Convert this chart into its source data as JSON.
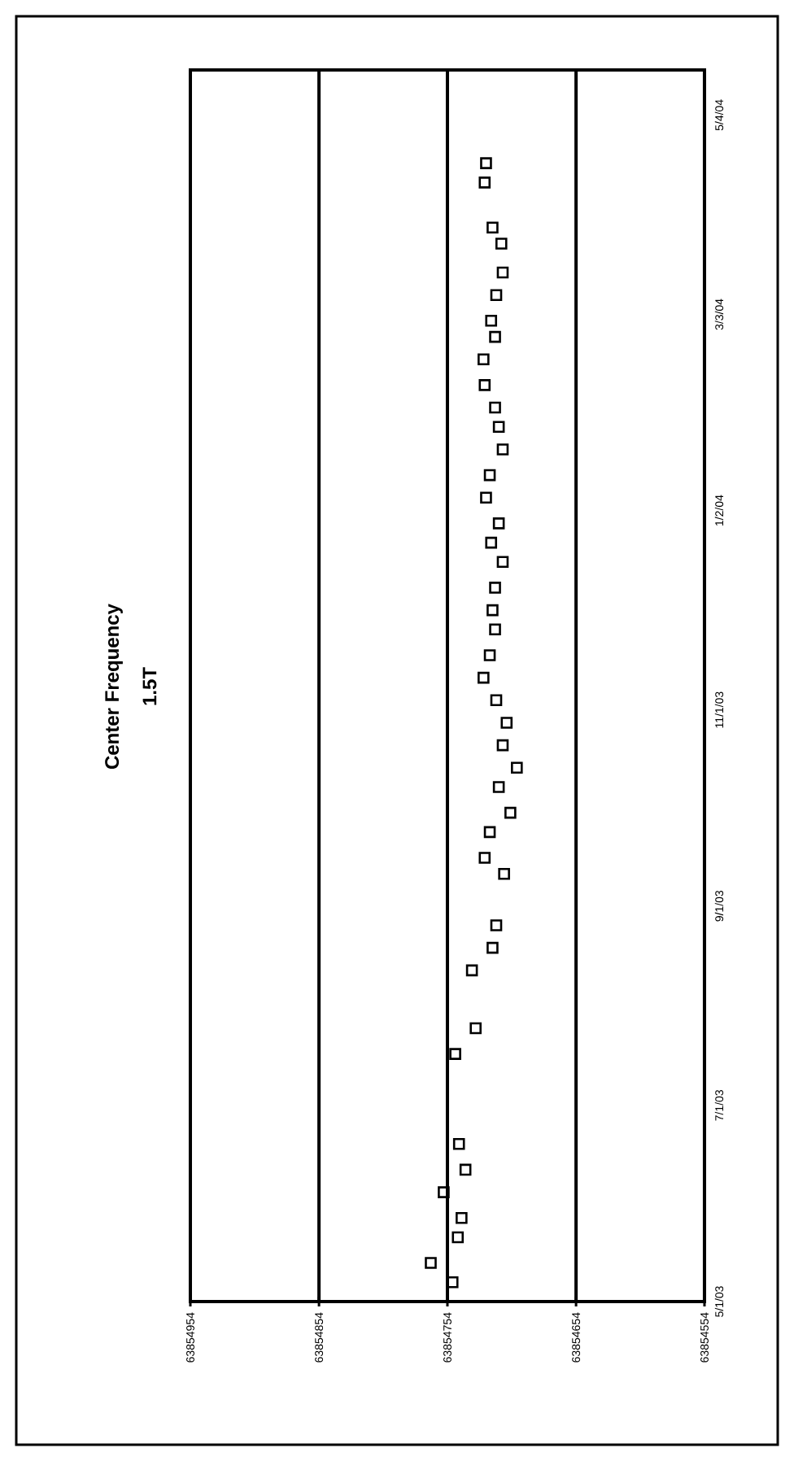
{
  "chart_data": {
    "type": "scatter",
    "title": "Center Frequency",
    "subtitle": "1.5T",
    "orientation": "horizontal",
    "x": [
      "2003-05-07",
      "2003-05-13",
      "2003-05-21",
      "2003-05-27",
      "2003-06-04",
      "2003-06-11",
      "2003-06-19",
      "2003-07-17",
      "2003-07-25",
      "2003-08-12",
      "2003-08-19",
      "2003-08-26",
      "2003-09-11",
      "2003-09-16",
      "2003-09-24",
      "2003-09-30",
      "2003-10-08",
      "2003-10-14",
      "2003-10-21",
      "2003-10-28",
      "2003-11-04",
      "2003-11-11",
      "2003-11-18",
      "2003-11-26",
      "2003-12-02",
      "2003-12-09",
      "2003-12-17",
      "2003-12-23",
      "2003-12-29",
      "2004-01-06",
      "2004-01-13",
      "2004-01-21",
      "2004-01-28",
      "2004-02-03",
      "2004-02-10",
      "2004-02-18",
      "2004-02-25",
      "2004-03-01",
      "2004-03-09",
      "2004-03-16",
      "2004-03-25",
      "2004-03-30",
      "2004-04-13",
      "2004-04-19"
    ],
    "values": [
      63854750,
      63854767,
      63854746,
      63854743,
      63854757,
      63854740,
      63854745,
      63854748,
      63854732,
      63854735,
      63854719,
      63854716,
      63854710,
      63854725,
      63854721,
      63854705,
      63854714,
      63854700,
      63854711,
      63854708,
      63854716,
      63854726,
      63854721,
      63854717,
      63854719,
      63854717,
      63854711,
      63854720,
      63854714,
      63854724,
      63854721,
      63854711,
      63854714,
      63854717,
      63854725,
      63854726,
      63854717,
      63854720,
      63854716,
      63854711,
      63854712,
      63854719,
      63854725,
      63854724
    ],
    "color": "#000000",
    "marker": "square",
    "ylim": [
      "2003-05-01",
      "2004-05-18"
    ],
    "yticks": [
      {
        "value": "2003-05-01",
        "label": "5/1/03"
      },
      {
        "value": "2003-07-01",
        "label": "7/1/03"
      },
      {
        "value": "2003-09-01",
        "label": "9/1/03"
      },
      {
        "value": "2003-11-01",
        "label": "11/1/03"
      },
      {
        "value": "2004-01-02",
        "label": "1/2/04"
      },
      {
        "value": "2004-03-03",
        "label": "3/3/04"
      },
      {
        "value": "2004-05-04",
        "label": "5/4/04"
      }
    ],
    "xlim": [
      63854954,
      63854554
    ],
    "xticks": [
      63854954,
      63854854,
      63854754,
      63854654,
      63854554
    ],
    "grid": "x"
  }
}
